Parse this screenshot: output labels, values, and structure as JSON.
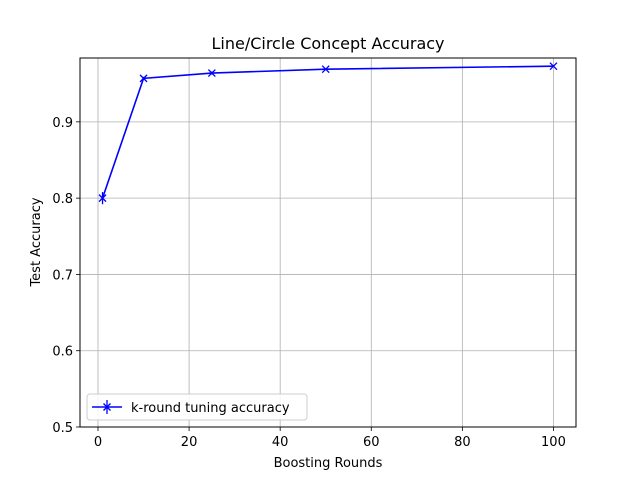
{
  "chart_data": {
    "type": "line",
    "title": "Line/Circle Concept Accuracy",
    "xlabel": "Boosting Rounds",
    "ylabel": "Test Accuracy",
    "xlim": [
      -3.95,
      104.95
    ],
    "ylim": [
      0.5,
      0.9837
    ],
    "xticks": [
      0,
      20,
      40,
      60,
      80,
      100
    ],
    "yticks": [
      0.5,
      0.6,
      0.7,
      0.8,
      0.9
    ],
    "xtick_labels": [
      "0",
      "20",
      "40",
      "60",
      "80",
      "100"
    ],
    "ytick_labels": [
      "0.5",
      "0.6",
      "0.7",
      "0.8",
      "0.9"
    ],
    "grid": true,
    "legend_position": "lower-left",
    "series": [
      {
        "name": "k-round tuning accuracy",
        "color": "#0000ff",
        "marker": "x",
        "x": [
          1,
          10,
          25,
          50,
          100
        ],
        "y": [
          0.8,
          0.957,
          0.964,
          0.969,
          0.973
        ],
        "error": [
          0.008,
          0.002,
          0.002,
          0.001,
          0.001
        ]
      }
    ]
  }
}
